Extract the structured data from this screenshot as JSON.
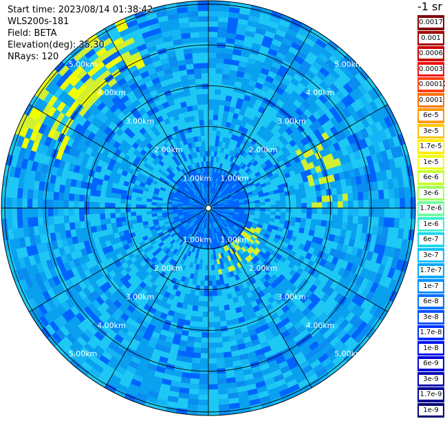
{
  "header": {
    "start_time": "Start time: 2023/08/14 01:38:42",
    "device": "WLS200s-181",
    "field": "Field: BETA",
    "elevation": "Elevation(deg): 35.30",
    "nrays": "NRays: 120"
  },
  "colorbar": {
    "unit_label": "-1 sr",
    "labels": [
      "0.0017",
      "0.001",
      "0.0006",
      "0.0003",
      "0.00017",
      "0.0001",
      "6e-5",
      "3e-5",
      "1.7e-5",
      "1e-5",
      "6e-6",
      "3e-6",
      "1.7e-6",
      "1e-6",
      "6e-7",
      "3e-7",
      "1.7e-7",
      "1e-7",
      "6e-8",
      "3e-8",
      "1.7e-8",
      "1e-8",
      "6e-9",
      "3e-9",
      "1.7e-9",
      "1e-9"
    ],
    "colors": [
      "#800000",
      "#a00000",
      "#cc0000",
      "#f01010",
      "#ff4010",
      "#ff7000",
      "#ff9a00",
      "#ffc400",
      "#ffee00",
      "#f0ff10",
      "#c8ff30",
      "#a0ff60",
      "#70ffa0",
      "#40f0d0",
      "#20d8f0",
      "#10c0ff",
      "#00a8ff",
      "#0090ff",
      "#0070ff",
      "#0050ff",
      "#0030ff",
      "#0010f0",
      "#0000d8",
      "#0000b0",
      "#000090",
      "#000070"
    ]
  },
  "plot": {
    "range_labels": [
      "1.00km",
      "2.00km",
      "3.00km",
      "4.00km",
      "5.00km"
    ],
    "num_rays": 120,
    "colors": {
      "dominant": "#0aa0f0",
      "light": "#1ec8f5",
      "dark": "#0064ff",
      "highlight": "#d2f032",
      "yellow": "#f0ff00"
    }
  }
}
